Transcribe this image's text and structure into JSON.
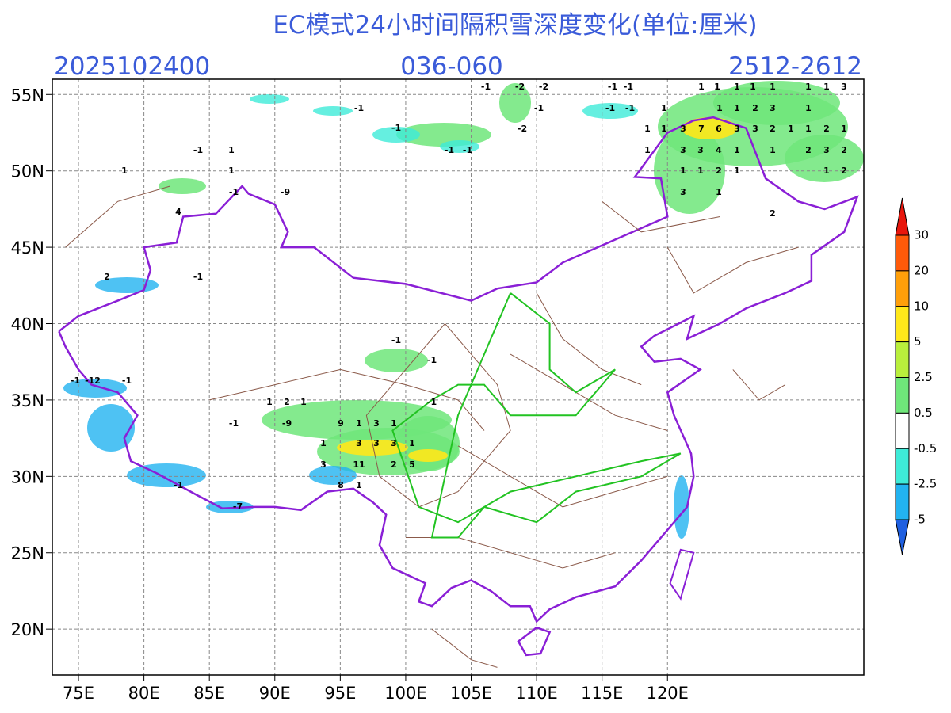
{
  "header": {
    "title": "EC模式24小时间隔积雪深度变化(单位:厘米)",
    "init_time": "2025102400",
    "forecast_hours": "036-060",
    "valid_period": "2512-2612"
  },
  "map": {
    "lon_range": [
      73,
      135
    ],
    "lat_range": [
      17,
      56
    ],
    "lon_ticks": [
      {
        "value": 75,
        "label": "75E"
      },
      {
        "value": 80,
        "label": "80E"
      },
      {
        "value": 85,
        "label": "85E"
      },
      {
        "value": 90,
        "label": "90E"
      },
      {
        "value": 95,
        "label": "95E"
      },
      {
        "value": 100,
        "label": "100E"
      },
      {
        "value": 105,
        "label": "105E"
      },
      {
        "value": 110,
        "label": "110E"
      },
      {
        "value": 115,
        "label": "115E"
      },
      {
        "value": 120,
        "label": "120E"
      }
    ],
    "lat_ticks": [
      {
        "value": 55,
        "label": "55N"
      },
      {
        "value": 50,
        "label": "50N"
      },
      {
        "value": 45,
        "label": "45N"
      },
      {
        "value": 40,
        "label": "40N"
      },
      {
        "value": 35,
        "label": "35N"
      },
      {
        "value": 30,
        "label": "30N"
      },
      {
        "value": 25,
        "label": "25N"
      },
      {
        "value": 20,
        "label": "20N"
      }
    ],
    "labels": [
      -1,
      -2,
      -2,
      -1,
      -1,
      1,
      1,
      1,
      1,
      1,
      1,
      1,
      3,
      -1,
      -1,
      -1,
      -1,
      1,
      1,
      1,
      2,
      3,
      1,
      -1,
      -2,
      1,
      1,
      3,
      7,
      6,
      3,
      3,
      2,
      1,
      1,
      2,
      1,
      -1,
      1,
      -1,
      -1,
      1,
      3,
      3,
      4,
      1,
      1,
      2,
      3,
      2,
      1,
      1,
      1,
      1,
      2,
      1,
      1,
      2,
      -1,
      -9,
      3,
      1,
      4,
      2,
      2,
      -1,
      -1,
      -1,
      -1,
      -12,
      -1,
      -1,
      1,
      2,
      1,
      -1,
      -9,
      9,
      1,
      3,
      1,
      1,
      3,
      3,
      3,
      1,
      3,
      11,
      2,
      5,
      8,
      1,
      -1,
      -7
    ]
  },
  "colorbar": {
    "levels": [
      30,
      20,
      10,
      5,
      2.5,
      0.5,
      -0.5,
      -2.5,
      -5
    ],
    "colors": [
      "#e8160c",
      "#ff5a0a",
      "#ff9f0a",
      "#ffe81a",
      "#b9ef3c",
      "#6fe67a",
      "#ffffff",
      "#3eebd8",
      "#22b3f0",
      "#1f7fe8",
      "#1f5fe0"
    ]
  }
}
